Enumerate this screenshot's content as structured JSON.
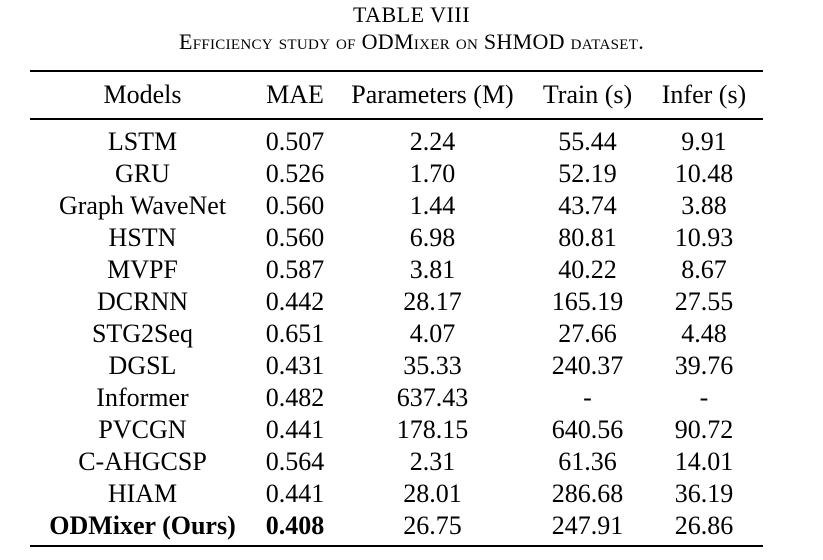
{
  "table": {
    "label": "TABLE VIII",
    "caption": "Efficiency study of ODMixer on SHMOD dataset.",
    "headers": [
      "Models",
      "MAE",
      "Parameters (M)",
      "Train (s)",
      "Infer (s)"
    ],
    "rows": [
      {
        "model": "LSTM",
        "mae": "0.507",
        "params": "2.24",
        "train": "55.44",
        "infer": "9.91"
      },
      {
        "model": "GRU",
        "mae": "0.526",
        "params": "1.70",
        "train": "52.19",
        "infer": "10.48"
      },
      {
        "model": "Graph WaveNet",
        "mae": "0.560",
        "params": "1.44",
        "train": "43.74",
        "infer": "3.88"
      },
      {
        "model": "HSTN",
        "mae": "0.560",
        "params": "6.98",
        "train": "80.81",
        "infer": "10.93"
      },
      {
        "model": "MVPF",
        "mae": "0.587",
        "params": "3.81",
        "train": "40.22",
        "infer": "8.67"
      },
      {
        "model": "DCRNN",
        "mae": "0.442",
        "params": "28.17",
        "train": "165.19",
        "infer": "27.55"
      },
      {
        "model": "STG2Seq",
        "mae": "0.651",
        "params": "4.07",
        "train": "27.66",
        "infer": "4.48"
      },
      {
        "model": "DGSL",
        "mae": "0.431",
        "params": "35.33",
        "train": "240.37",
        "infer": "39.76"
      },
      {
        "model": "Informer",
        "mae": "0.482",
        "params": "637.43",
        "train": "-",
        "infer": "-"
      },
      {
        "model": "PVCGN",
        "mae": "0.441",
        "params": "178.15",
        "train": "640.56",
        "infer": "90.72"
      },
      {
        "model": "C-AHGCSP",
        "mae": "0.564",
        "params": "2.31",
        "train": "61.36",
        "infer": "14.01"
      },
      {
        "model": "HIAM",
        "mae": "0.441",
        "params": "28.01",
        "train": "286.68",
        "infer": "36.19"
      },
      {
        "model": "ODMixer (Ours)",
        "mae": "0.408",
        "params": "26.75",
        "train": "247.91",
        "infer": "26.86"
      }
    ]
  }
}
